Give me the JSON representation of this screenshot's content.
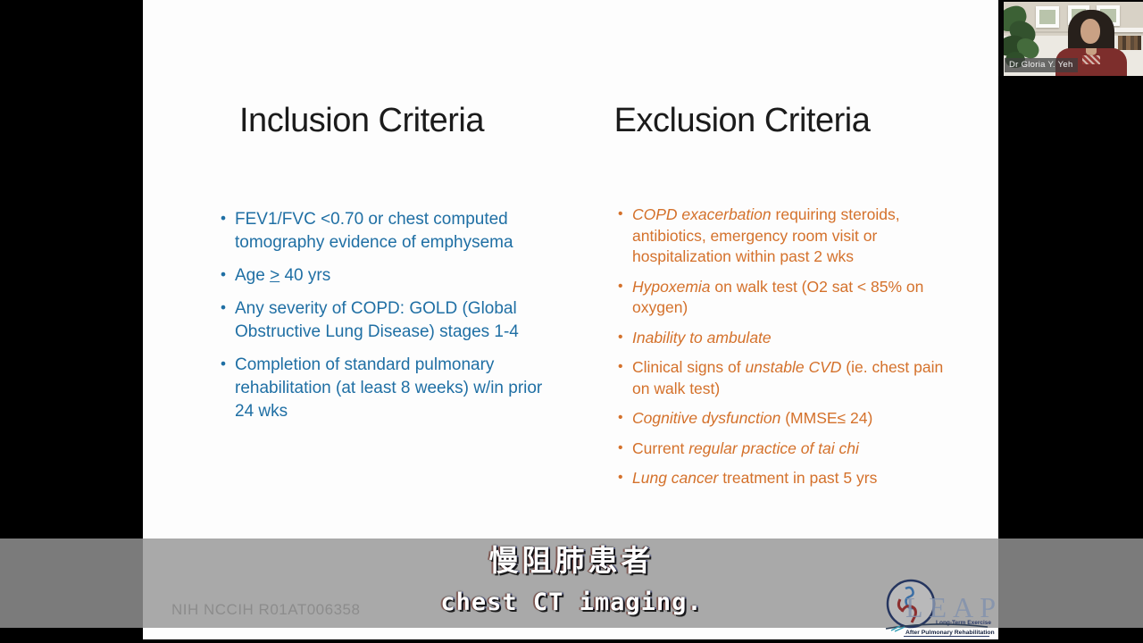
{
  "slide": {
    "inclusion": {
      "title": "Inclusion Criteria",
      "text_color": "#1F6FA4",
      "bullets": [
        [
          {
            "t": "FEV1/FVC <0.70 or chest computed tomography evidence of emphysema"
          }
        ],
        [
          {
            "t": "Age "
          },
          {
            "t": ">",
            "u": true
          },
          {
            "t": " 40 yrs"
          }
        ],
        [
          {
            "t": "Any severity of COPD: GOLD (Global Obstructive Lung Disease) stages 1-4"
          }
        ],
        [
          {
            "t": "Completion of standard pulmonary rehabilitation (at least 8 weeks) w/in prior 24 wks"
          }
        ]
      ]
    },
    "exclusion": {
      "title": "Exclusion Criteria",
      "text_color": "#D4712B",
      "bullets": [
        [
          {
            "t": "COPD exacerbation",
            "i": true
          },
          {
            "t": " requiring steroids, antibiotics, emergency room visit or hospitalization within past 2 wks"
          }
        ],
        [
          {
            "t": "Hypoxemia",
            "i": true
          },
          {
            "t": " on walk test (O2 sat < 85% on oxygen)"
          }
        ],
        [
          {
            "t": "Inability to ambulate",
            "i": true
          }
        ],
        [
          {
            "t": "Clinical signs of "
          },
          {
            "t": "unstable CVD",
            "i": true
          },
          {
            "t": " (ie. chest pain on walk test)"
          }
        ],
        [
          {
            "t": "Cognitive dysfunction",
            "i": true
          },
          {
            "t": " (MMSE≤ 24)"
          }
        ],
        [
          {
            "t": "Current "
          },
          {
            "t": "regular practice of tai chi",
            "i": true
          }
        ],
        [
          {
            "t": "Lung cancer",
            "i": true
          },
          {
            "t": " treatment in past 5 yrs"
          }
        ]
      ]
    },
    "grant_number": "NIH NCCIH R01AT006358"
  },
  "subtitles": {
    "line1_zh": "慢阻肺患者",
    "line2_en": "chest CT imaging."
  },
  "webcam": {
    "name_label": "Dr Gloria Y. Yeh"
  },
  "logo": {
    "acronym": "LEAP",
    "tagline_top": "Long-Term Exercise",
    "tagline_bottom": "After Pulmonary Rehabilitation"
  },
  "colors": {
    "inclusion_blue": "#1F6FA4",
    "exclusion_orange": "#D4712B",
    "subtitle_band_gray": "#969696",
    "logo_navy": "#25355F"
  }
}
